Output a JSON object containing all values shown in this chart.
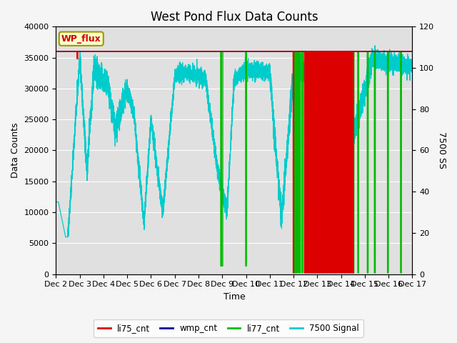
{
  "title": "West Pond Flux Data Counts",
  "xlabel": "Time",
  "ylabel_left": "Data Counts",
  "ylabel_right": "7500 SS",
  "ylim_left": [
    0,
    40000
  ],
  "ylim_right": [
    0,
    120
  ],
  "xlim": [
    0,
    15
  ],
  "x_tick_labels": [
    "Dec 2",
    "Dec 3",
    "Dec 4",
    "Dec 5",
    "Dec 6",
    "Dec 7",
    "Dec 8",
    "Dec 9",
    "Dec 10",
    "Dec 11",
    "Dec 12",
    "Dec 13",
    "Dec 14",
    "Dec 15",
    "Dec 16",
    "Dec 17"
  ],
  "bg_color": "#e0e0e0",
  "fig_bg_color": "#f5f5f5",
  "wp_flux_box_facecolor": "#ffffcc",
  "wp_flux_box_edgecolor": "#999900",
  "wp_flux_text_color": "#cc0000",
  "legend_entries": [
    "li75_cnt",
    "wmp_cnt",
    "li77_cnt",
    "7500 Signal"
  ],
  "line_colors": [
    "#dd0000",
    "#000099",
    "#00bb00",
    "#00cccc"
  ],
  "title_fontsize": 12,
  "axis_fontsize": 9,
  "tick_fontsize": 8,
  "scale": 333.333
}
